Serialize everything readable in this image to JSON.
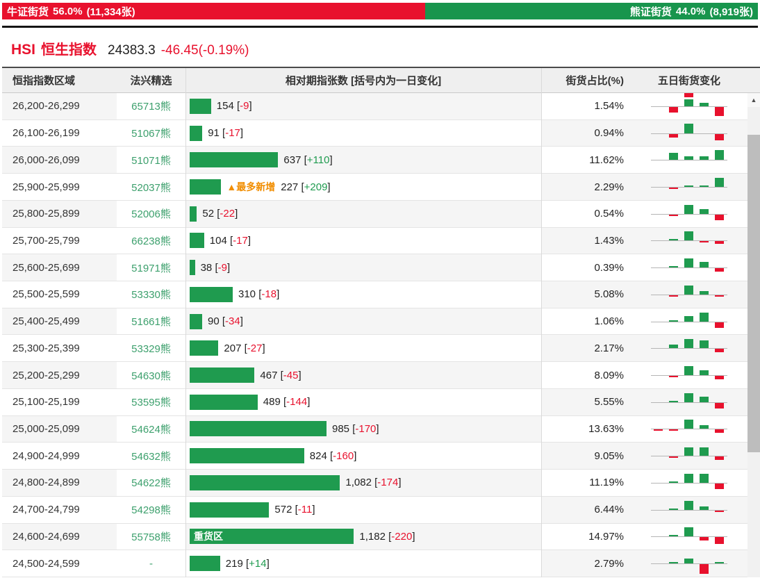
{
  "gauge": {
    "bull": {
      "label": "牛证街货",
      "percent": "56.0%",
      "count": "(11,334张)",
      "ratio": 56.0,
      "color": "#e8112d"
    },
    "bear": {
      "label": "熊证街货",
      "percent": "44.0%",
      "count": "(8,919张)",
      "ratio": 44.0,
      "color": "#18954d"
    }
  },
  "title": {
    "symbol": "HSI",
    "name": "恒生指数",
    "price": "24383.3",
    "change": "-46.45(-0.19%)"
  },
  "table": {
    "headers": {
      "range": "恒指指数区域",
      "code": "法兴精选",
      "bar": "相对期指张数 [括号内为一日变化]",
      "pct": "街货占比(%)",
      "spark": "五日街货变化"
    },
    "punct": {
      "open": "[",
      "close": "]"
    },
    "rows": [
      {
        "range": "26,200-26,299",
        "code": "65713熊",
        "value": 154,
        "value_label": "154",
        "change": "-9",
        "pct": "1.54%",
        "spark": [
          0,
          -8,
          10,
          5,
          -13
        ]
      },
      {
        "range": "26,100-26,199",
        "code": "51067熊",
        "value": 91,
        "value_label": "91",
        "change": "-17",
        "pct": "0.94%",
        "spark": [
          0,
          -5,
          14,
          0,
          -9
        ]
      },
      {
        "range": "26,000-26,099",
        "code": "51071熊",
        "value": 637,
        "value_label": "637",
        "change": "+110",
        "pct": "11.62%",
        "spark": [
          0,
          10,
          5,
          5,
          14
        ]
      },
      {
        "range": "25,900-25,999",
        "code": "52037熊",
        "value": 227,
        "value_label": "227",
        "change": "+209",
        "pct": "2.29%",
        "spark": [
          0,
          -2,
          2,
          2,
          13
        ],
        "tag_outside": "▲最多新增"
      },
      {
        "range": "25,800-25,899",
        "code": "52006熊",
        "value": 52,
        "value_label": "52",
        "change": "-22",
        "pct": "0.54%",
        "spark": [
          0,
          -2,
          13,
          7,
          -8
        ]
      },
      {
        "range": "25,700-25,799",
        "code": "66238熊",
        "value": 104,
        "value_label": "104",
        "change": "-17",
        "pct": "1.43%",
        "spark": [
          0,
          2,
          13,
          -2,
          -4
        ]
      },
      {
        "range": "25,600-25,699",
        "code": "51971熊",
        "value": 38,
        "value_label": "38",
        "change": "-9",
        "pct": "0.39%",
        "spark": [
          0,
          2,
          13,
          8,
          -5
        ]
      },
      {
        "range": "25,500-25,599",
        "code": "53330熊",
        "value": 310,
        "value_label": "310",
        "change": "-18",
        "pct": "5.08%",
        "spark": [
          0,
          -2,
          13,
          5,
          -2
        ]
      },
      {
        "range": "25,400-25,499",
        "code": "51661熊",
        "value": 90,
        "value_label": "90",
        "change": "-34",
        "pct": "1.06%",
        "spark": [
          0,
          2,
          8,
          13,
          -8
        ]
      },
      {
        "range": "25,300-25,399",
        "code": "53329熊",
        "value": 207,
        "value_label": "207",
        "change": "-27",
        "pct": "2.17%",
        "spark": [
          0,
          5,
          13,
          11,
          -5
        ]
      },
      {
        "range": "25,200-25,299",
        "code": "54630熊",
        "value": 467,
        "value_label": "467",
        "change": "-45",
        "pct": "8.09%",
        "spark": [
          0,
          -2,
          13,
          7,
          -5
        ]
      },
      {
        "range": "25,100-25,199",
        "code": "53595熊",
        "value": 489,
        "value_label": "489",
        "change": "-144",
        "pct": "5.55%",
        "spark": [
          0,
          2,
          13,
          8,
          -8
        ]
      },
      {
        "range": "25,000-25,099",
        "code": "54624熊",
        "value": 985,
        "value_label": "985",
        "change": "-170",
        "pct": "13.63%",
        "spark": [
          -2,
          -2,
          13,
          5,
          -5
        ]
      },
      {
        "range": "24,900-24,999",
        "code": "54632熊",
        "value": 824,
        "value_label": "824",
        "change": "-160",
        "pct": "9.05%",
        "spark": [
          0,
          -2,
          12,
          12,
          -5
        ]
      },
      {
        "range": "24,800-24,899",
        "code": "54622熊",
        "value": 1082,
        "value_label": "1,082",
        "change": "-174",
        "pct": "11.19%",
        "spark": [
          0,
          2,
          13,
          13,
          -8
        ]
      },
      {
        "range": "24,700-24,799",
        "code": "54298熊",
        "value": 572,
        "value_label": "572",
        "change": "-11",
        "pct": "6.44%",
        "spark": [
          0,
          2,
          13,
          5,
          -2
        ]
      },
      {
        "range": "24,600-24,699",
        "code": "55758熊",
        "value": 1182,
        "value_label": "1,182",
        "change": "-220",
        "pct": "14.97%",
        "spark": [
          0,
          2,
          13,
          -5,
          -10
        ],
        "tag_inside": "重货区"
      },
      {
        "range": "24,500-24,599",
        "code": "-",
        "value": 219,
        "value_label": "219",
        "change": "+14",
        "pct": "2.79%",
        "spark": [
          0,
          2,
          7,
          -14,
          2
        ]
      }
    ]
  },
  "scrollbar": {
    "up_arrow": "▲"
  },
  "colors": {
    "up_green": "#1f9b4f",
    "down_red": "#e8112d",
    "code_green": "#3da06d",
    "highlight_orange": "#f18d00"
  }
}
